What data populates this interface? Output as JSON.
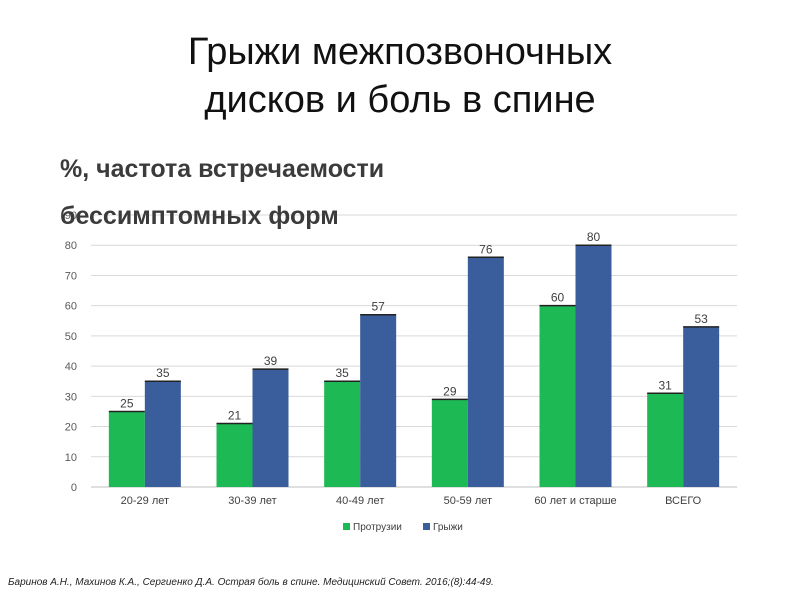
{
  "slide": {
    "title_line1": "Грыжи межпозвоночных",
    "title_line2": "дисков и боль в спине"
  },
  "chart_data": {
    "type": "bar",
    "title_line1": "%, частота встречаемости",
    "title_line2": "бессимптомных форм",
    "categories": [
      "20-29 лет",
      "30-39 лет",
      "40-49 лет",
      "50-59 лет",
      "60 лет и старше",
      "ВСЕГО"
    ],
    "series": [
      {
        "name": "Протрузии",
        "color": "#1db954",
        "values": [
          25,
          21,
          35,
          29,
          60,
          31
        ]
      },
      {
        "name": "Грыжи",
        "color": "#3a5e9b",
        "values": [
          35,
          39,
          57,
          76,
          80,
          53
        ]
      }
    ],
    "ylim": [
      0,
      90
    ],
    "yticks": [
      0,
      10,
      20,
      30,
      40,
      50,
      60,
      70,
      80,
      90
    ],
    "grid": true,
    "legend_position": "bottom",
    "data_labels": true
  },
  "footnote": "Баринов А.Н., Махинов К.А., Сергиенко Д.А. Острая боль в спине. Медицинский Совет. 2016;(8):44-49."
}
